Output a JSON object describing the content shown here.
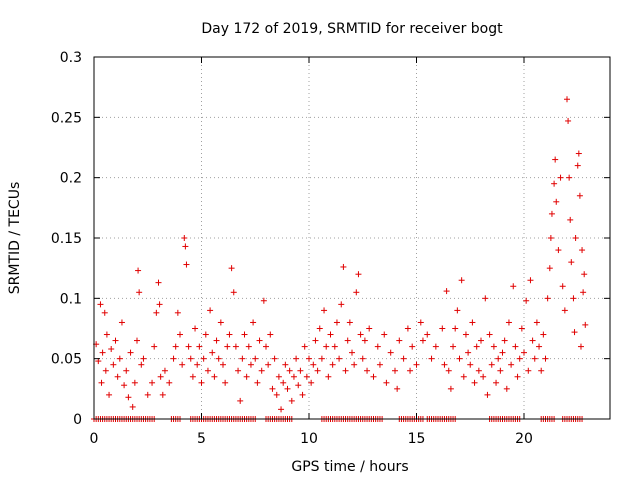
{
  "chart_data": {
    "type": "scatter",
    "title": "Day 172 of 2019, SRMTID for receiver bogt",
    "xlabel": "GPS time / hours",
    "ylabel": "SRMTID / TECUs",
    "xlim": [
      0,
      24
    ],
    "ylim": [
      0,
      0.3
    ],
    "xticks": [
      0,
      5,
      10,
      15,
      20
    ],
    "xtick_labels": [
      "0",
      "5",
      "10",
      "15",
      "20"
    ],
    "yticks": [
      0,
      0.05,
      0.1,
      0.15,
      0.2,
      0.25,
      0.3
    ],
    "ytick_labels": [
      "0",
      "0.05",
      "0.1",
      "0.15",
      "0.2",
      "0.25",
      "0.3"
    ],
    "grid": true,
    "marker": "plus",
    "color": "#e00000",
    "series": [
      {
        "name": "SRMTID",
        "points": [
          [
            0.1,
            0.062
          ],
          [
            0.2,
            0.048
          ],
          [
            0.3,
            0.095
          ],
          [
            0.35,
            0.03
          ],
          [
            0.4,
            0.055
          ],
          [
            0.5,
            0.088
          ],
          [
            0.55,
            0.04
          ],
          [
            0.6,
            0.07
          ],
          [
            0.7,
            0.02
          ],
          [
            0.8,
            0.058
          ],
          [
            0.9,
            0.045
          ],
          [
            1.0,
            0.065
          ],
          [
            1.1,
            0.035
          ],
          [
            1.2,
            0.05
          ],
          [
            1.3,
            0.08
          ],
          [
            1.4,
            0.028
          ],
          [
            1.5,
            0.04
          ],
          [
            1.6,
            0.018
          ],
          [
            1.7,
            0.055
          ],
          [
            1.8,
            0.01
          ],
          [
            1.9,
            0.03
          ],
          [
            2.0,
            0.065
          ],
          [
            2.05,
            0.123
          ],
          [
            2.1,
            0.105
          ],
          [
            2.2,
            0.045
          ],
          [
            2.3,
            0.05
          ],
          [
            2.5,
            0.02
          ],
          [
            2.7,
            0.03
          ],
          [
            2.8,
            0.06
          ],
          [
            2.9,
            0.088
          ],
          [
            3.0,
            0.113
          ],
          [
            3.05,
            0.095
          ],
          [
            3.1,
            0.035
          ],
          [
            3.2,
            0.02
          ],
          [
            3.3,
            0.04
          ],
          [
            3.5,
            0.03
          ],
          [
            3.7,
            0.05
          ],
          [
            3.8,
            0.06
          ],
          [
            3.9,
            0.088
          ],
          [
            4.0,
            0.07
          ],
          [
            4.1,
            0.045
          ],
          [
            4.2,
            0.15
          ],
          [
            4.25,
            0.143
          ],
          [
            4.3,
            0.128
          ],
          [
            4.4,
            0.06
          ],
          [
            4.5,
            0.05
          ],
          [
            4.6,
            0.035
          ],
          [
            4.7,
            0.075
          ],
          [
            4.8,
            0.045
          ],
          [
            4.9,
            0.06
          ],
          [
            5.0,
            0.03
          ],
          [
            5.1,
            0.05
          ],
          [
            5.2,
            0.07
          ],
          [
            5.3,
            0.04
          ],
          [
            5.4,
            0.09
          ],
          [
            5.5,
            0.055
          ],
          [
            5.6,
            0.035
          ],
          [
            5.7,
            0.065
          ],
          [
            5.8,
            0.05
          ],
          [
            5.9,
            0.08
          ],
          [
            6.0,
            0.045
          ],
          [
            6.1,
            0.03
          ],
          [
            6.2,
            0.06
          ],
          [
            6.3,
            0.07
          ],
          [
            6.4,
            0.125
          ],
          [
            6.5,
            0.105
          ],
          [
            6.6,
            0.06
          ],
          [
            6.7,
            0.04
          ],
          [
            6.8,
            0.015
          ],
          [
            6.9,
            0.05
          ],
          [
            7.0,
            0.07
          ],
          [
            7.1,
            0.035
          ],
          [
            7.2,
            0.06
          ],
          [
            7.3,
            0.045
          ],
          [
            7.4,
            0.08
          ],
          [
            7.5,
            0.05
          ],
          [
            7.6,
            0.03
          ],
          [
            7.7,
            0.065
          ],
          [
            7.8,
            0.04
          ],
          [
            7.9,
            0.098
          ],
          [
            8.0,
            0.06
          ],
          [
            8.1,
            0.045
          ],
          [
            8.2,
            0.07
          ],
          [
            8.3,
            0.025
          ],
          [
            8.4,
            0.05
          ],
          [
            8.5,
            0.02
          ],
          [
            8.6,
            0.035
          ],
          [
            8.7,
            0.008
          ],
          [
            8.8,
            0.03
          ],
          [
            8.9,
            0.045
          ],
          [
            9.0,
            0.025
          ],
          [
            9.1,
            0.04
          ],
          [
            9.2,
            0.015
          ],
          [
            9.3,
            0.035
          ],
          [
            9.4,
            0.05
          ],
          [
            9.5,
            0.028
          ],
          [
            9.6,
            0.04
          ],
          [
            9.7,
            0.02
          ],
          [
            9.8,
            0.06
          ],
          [
            9.9,
            0.035
          ],
          [
            10.0,
            0.05
          ],
          [
            10.1,
            0.03
          ],
          [
            10.2,
            0.045
          ],
          [
            10.3,
            0.065
          ],
          [
            10.4,
            0.04
          ],
          [
            10.5,
            0.075
          ],
          [
            10.6,
            0.05
          ],
          [
            10.7,
            0.09
          ],
          [
            10.8,
            0.06
          ],
          [
            10.9,
            0.035
          ],
          [
            11.0,
            0.07
          ],
          [
            11.1,
            0.045
          ],
          [
            11.2,
            0.06
          ],
          [
            11.3,
            0.08
          ],
          [
            11.4,
            0.05
          ],
          [
            11.5,
            0.095
          ],
          [
            11.6,
            0.126
          ],
          [
            11.7,
            0.04
          ],
          [
            11.8,
            0.065
          ],
          [
            11.9,
            0.08
          ],
          [
            12.0,
            0.055
          ],
          [
            12.1,
            0.045
          ],
          [
            12.2,
            0.105
          ],
          [
            12.3,
            0.12
          ],
          [
            12.4,
            0.07
          ],
          [
            12.5,
            0.05
          ],
          [
            12.6,
            0.065
          ],
          [
            12.7,
            0.04
          ],
          [
            12.8,
            0.075
          ],
          [
            13.0,
            0.035
          ],
          [
            13.2,
            0.06
          ],
          [
            13.3,
            0.045
          ],
          [
            13.5,
            0.07
          ],
          [
            13.6,
            0.03
          ],
          [
            13.8,
            0.055
          ],
          [
            14.0,
            0.04
          ],
          [
            14.1,
            0.025
          ],
          [
            14.2,
            0.065
          ],
          [
            14.4,
            0.05
          ],
          [
            14.6,
            0.075
          ],
          [
            14.7,
            0.04
          ],
          [
            14.8,
            0.06
          ],
          [
            15.0,
            0.045
          ],
          [
            15.2,
            0.08
          ],
          [
            15.3,
            0.065
          ],
          [
            15.5,
            0.07
          ],
          [
            15.7,
            0.05
          ],
          [
            15.9,
            0.06
          ],
          [
            16.2,
            0.075
          ],
          [
            16.3,
            0.045
          ],
          [
            16.4,
            0.106
          ],
          [
            16.5,
            0.04
          ],
          [
            16.6,
            0.025
          ],
          [
            16.7,
            0.06
          ],
          [
            16.8,
            0.075
          ],
          [
            16.9,
            0.09
          ],
          [
            17.0,
            0.05
          ],
          [
            17.1,
            0.115
          ],
          [
            17.2,
            0.035
          ],
          [
            17.3,
            0.07
          ],
          [
            17.4,
            0.055
          ],
          [
            17.5,
            0.045
          ],
          [
            17.6,
            0.08
          ],
          [
            17.7,
            0.03
          ],
          [
            17.8,
            0.06
          ],
          [
            17.9,
            0.04
          ],
          [
            18.0,
            0.065
          ],
          [
            18.1,
            0.035
          ],
          [
            18.2,
            0.1
          ],
          [
            18.3,
            0.02
          ],
          [
            18.4,
            0.07
          ],
          [
            18.5,
            0.045
          ],
          [
            18.6,
            0.06
          ],
          [
            18.7,
            0.03
          ],
          [
            18.8,
            0.05
          ],
          [
            18.9,
            0.04
          ],
          [
            19.0,
            0.055
          ],
          [
            19.1,
            0.065
          ],
          [
            19.2,
            0.025
          ],
          [
            19.3,
            0.08
          ],
          [
            19.4,
            0.045
          ],
          [
            19.5,
            0.11
          ],
          [
            19.6,
            0.06
          ],
          [
            19.7,
            0.035
          ],
          [
            19.8,
            0.05
          ],
          [
            19.9,
            0.075
          ],
          [
            20.0,
            0.055
          ],
          [
            20.1,
            0.098
          ],
          [
            20.2,
            0.04
          ],
          [
            20.3,
            0.115
          ],
          [
            20.4,
            0.065
          ],
          [
            20.5,
            0.05
          ],
          [
            20.6,
            0.08
          ],
          [
            20.7,
            0.06
          ],
          [
            20.8,
            0.04
          ],
          [
            20.9,
            0.07
          ],
          [
            21.0,
            0.05
          ],
          [
            21.1,
            0.1
          ],
          [
            21.2,
            0.125
          ],
          [
            21.25,
            0.15
          ],
          [
            21.3,
            0.17
          ],
          [
            21.4,
            0.195
          ],
          [
            21.45,
            0.215
          ],
          [
            21.5,
            0.18
          ],
          [
            21.6,
            0.14
          ],
          [
            21.7,
            0.2
          ],
          [
            21.8,
            0.11
          ],
          [
            21.9,
            0.09
          ],
          [
            22.0,
            0.265
          ],
          [
            22.05,
            0.247
          ],
          [
            22.1,
            0.2
          ],
          [
            22.15,
            0.165
          ],
          [
            22.2,
            0.13
          ],
          [
            22.3,
            0.1
          ],
          [
            22.35,
            0.072
          ],
          [
            22.4,
            0.15
          ],
          [
            22.5,
            0.21
          ],
          [
            22.55,
            0.22
          ],
          [
            22.6,
            0.185
          ],
          [
            22.65,
            0.06
          ],
          [
            22.7,
            0.14
          ],
          [
            22.75,
            0.105
          ],
          [
            22.8,
            0.12
          ],
          [
            22.85,
            0.078
          ]
        ],
        "zero_runs": [
          [
            0.0,
            2.8
          ],
          [
            3.6,
            4.0
          ],
          [
            4.5,
            7.5
          ],
          [
            8.0,
            9.2
          ],
          [
            10.6,
            13.4
          ],
          [
            14.2,
            15.3
          ],
          [
            15.5,
            16.8
          ],
          [
            18.4,
            19.8
          ],
          [
            20.8,
            21.4
          ],
          [
            21.8,
            22.7
          ]
        ]
      }
    ]
  }
}
